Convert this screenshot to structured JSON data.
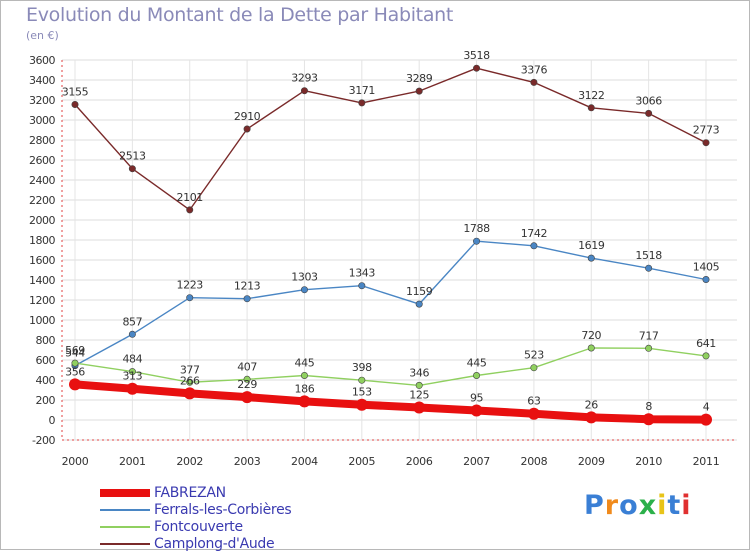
{
  "header": {
    "title": "Evolution du Montant de la Dette par Habitant",
    "subtitle": "(en €)"
  },
  "logo": {
    "text": "Proxiti",
    "colors": [
      "#3a7fd5",
      "#f08a1c",
      "#3a7fd5",
      "#2bb04a",
      "#e8c419",
      "#3a7fd5",
      "#e03030"
    ]
  },
  "chart_data": {
    "type": "line",
    "title": "Evolution du Montant de la Dette par Habitant",
    "subtitle": "(en €)",
    "xlabel": "",
    "ylabel": "",
    "x": [
      "2000",
      "2001",
      "2002",
      "2003",
      "2004",
      "2005",
      "2006",
      "2007",
      "2008",
      "2009",
      "2010",
      "2011"
    ],
    "ylim": [
      -200,
      3600
    ],
    "yticks": [
      -200,
      0,
      200,
      400,
      600,
      800,
      1000,
      1200,
      1400,
      1600,
      1800,
      2000,
      2200,
      2400,
      2600,
      2800,
      3000,
      3200,
      3400,
      3600
    ],
    "grid": true,
    "legend_position": "bottom-left",
    "series": [
      {
        "name": "FABREZAN",
        "color": "#e81010",
        "values": [
          356,
          313,
          266,
          229,
          186,
          153,
          125,
          95,
          63,
          26,
          8,
          4
        ]
      },
      {
        "name": "Ferrals-les-Corbières",
        "color": "#4a86c4",
        "values": [
          544,
          857,
          1223,
          1213,
          1303,
          1343,
          1159,
          1788,
          1742,
          1619,
          1518,
          1405
        ]
      },
      {
        "name": "Fontcouverte",
        "color": "#90d060",
        "values": [
          569,
          484,
          377,
          407,
          445,
          398,
          346,
          445,
          523,
          720,
          717,
          641
        ]
      },
      {
        "name": "Camplong-d'Aude",
        "color": "#7a2a2a",
        "values": [
          3155,
          2513,
          2101,
          2910,
          3293,
          3171,
          3289,
          3518,
          3376,
          3122,
          3066,
          2773
        ]
      }
    ]
  }
}
